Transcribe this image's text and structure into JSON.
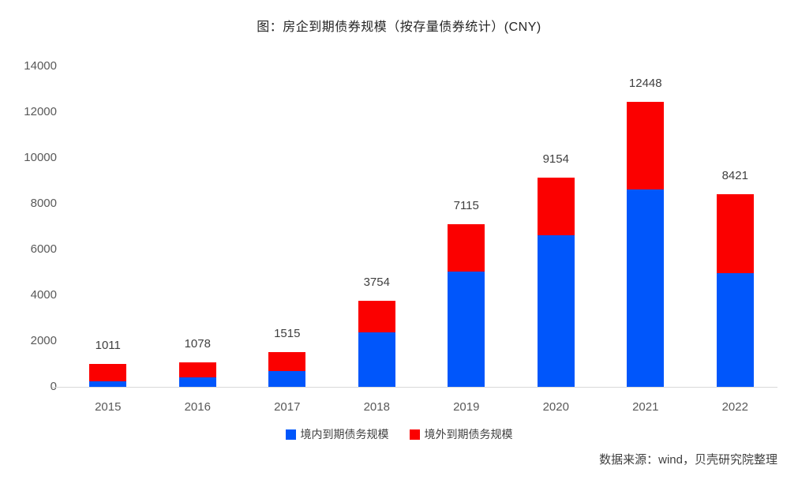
{
  "chart": {
    "source_note": "数据来源：wind，贝壳研究院整理"
  },
  "chart_data": {
    "type": "bar",
    "stacked": true,
    "title": "图：房企到期债券规模（按存量债券统计）(CNY)",
    "categories": [
      "2015",
      "2016",
      "2017",
      "2018",
      "2019",
      "2020",
      "2021",
      "2022"
    ],
    "series": [
      {
        "name": "境内到期债务规模",
        "key": "domestic",
        "color": "#0056fb",
        "values": [
          250,
          430,
          690,
          2380,
          5050,
          6610,
          8610,
          4950
        ]
      },
      {
        "name": "境外到期债务规模",
        "key": "overseas",
        "color": "#fb0000",
        "values": [
          761,
          648,
          825,
          1374,
          2065,
          2544,
          3838,
          3471
        ]
      }
    ],
    "totals": [
      1011,
      1078,
      1515,
      3754,
      7115,
      9154,
      12448,
      8421
    ],
    "xlabel": "",
    "ylabel": "",
    "ylim": [
      0,
      14000
    ],
    "yticks": [
      0,
      2000,
      4000,
      6000,
      8000,
      10000,
      12000,
      14000
    ],
    "grid": false,
    "legend_position": "bottom",
    "axis_line_color": "#d9d9d9",
    "label_color": "#404040",
    "tick_color": "#595959"
  }
}
